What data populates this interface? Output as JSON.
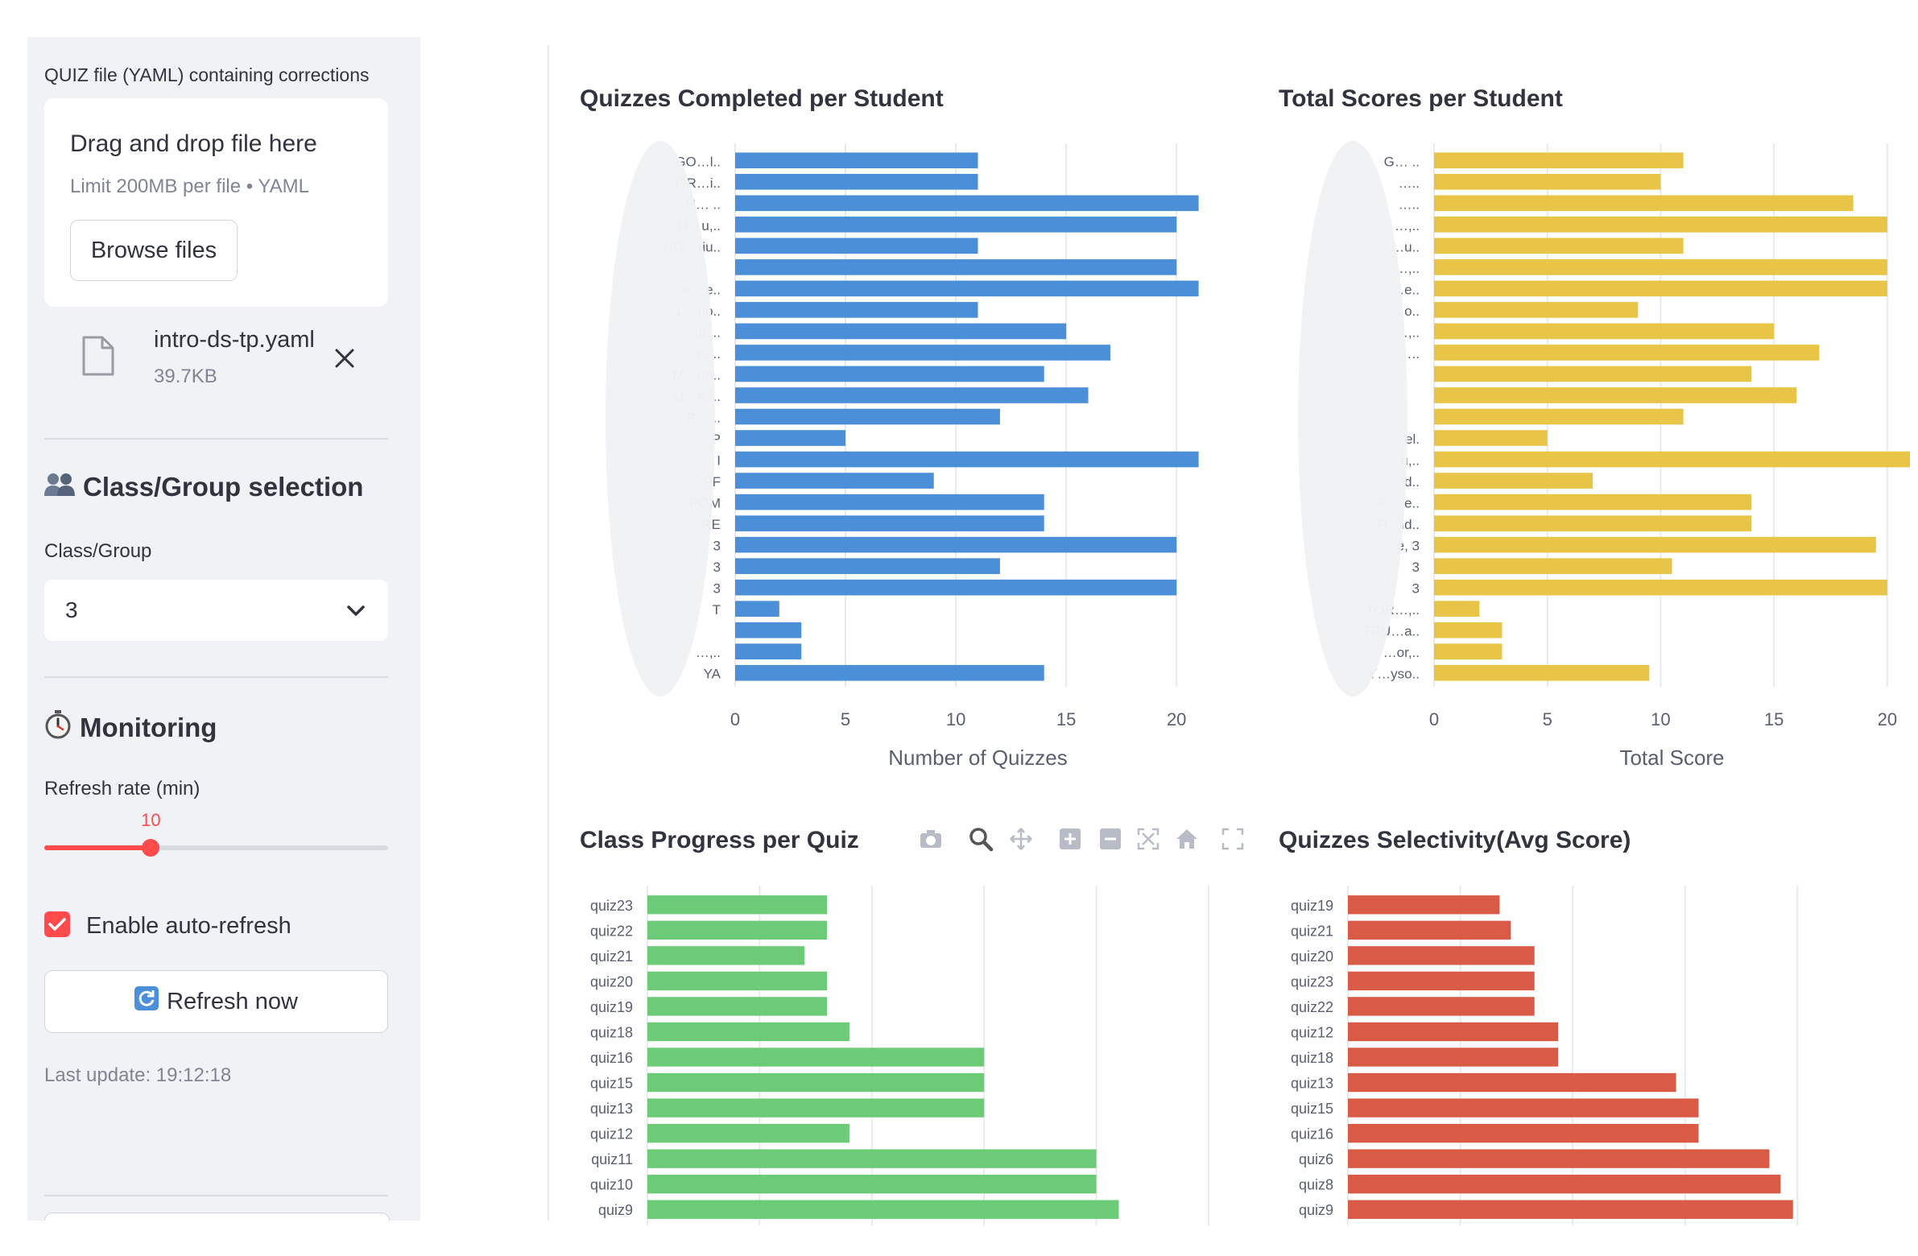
{
  "sidebar": {
    "uploader_label": "QUIZ file (YAML) containing corrections",
    "dropzone_title": "Drag and drop file here",
    "dropzone_hint": "Limit 200MB per file • YAML",
    "browse_label": "Browse files",
    "file_name": "intro-ds-tp.yaml",
    "file_size": "39.7KB",
    "class_heading": "Class/Group selection",
    "class_heading_icon": "people-icon",
    "class_label": "Class/Group",
    "class_value": "3",
    "monitor_heading": "Monitoring",
    "monitor_heading_icon": "stopwatch-icon",
    "refresh_label": "Refresh rate (min)",
    "refresh_value": "10",
    "refresh_fraction": 0.31,
    "autorefresh_label": "Enable auto-refresh",
    "autorefresh_checked": true,
    "refresh_now_label": "Refresh now",
    "refresh_now_icon": "refresh-icon",
    "last_update": "Last update: 19:12:18",
    "accent_color": "#ff4b4b"
  },
  "modebar_icons": [
    "camera-icon",
    "zoom-icon",
    "pan-icon",
    "zoom-in-icon",
    "zoom-out-icon",
    "autoscale-icon",
    "reset-axes-icon",
    "fullscreen-icon"
  ],
  "chart_data": [
    {
      "id": "quizzes",
      "type": "bar",
      "orientation": "horizontal",
      "title": "Quizzes Completed per Student",
      "xlabel": "Number of Quizzes",
      "color": "#4a8fd8",
      "xlim": [
        0,
        22
      ],
      "xticks": [
        0,
        5,
        10,
        15,
        20
      ],
      "categories": [
        "GO…l..",
        "GR…i..",
        "H… ..",
        "H…u,..",
        "HO…riu..",
        "",
        "K…e..",
        "L…no..",
        "…ul, ..",
        "…n, ..",
        "M…ori..",
        "M…n, ..",
        "P… ..",
        "P",
        "I",
        "PF",
        "POM",
        "RE",
        "3",
        "3",
        "3",
        "T",
        "",
        "…,..",
        "YA"
      ],
      "values": [
        11,
        11,
        21,
        20,
        11,
        20,
        21,
        11,
        15,
        17,
        14,
        16,
        12,
        5,
        21,
        9,
        14,
        14,
        20,
        12,
        20,
        2,
        3,
        3,
        14
      ]
    },
    {
      "id": "scores",
      "type": "bar",
      "orientation": "horizontal",
      "title": "Total Scores per Student",
      "xlabel": "Total Score",
      "color": "#e8c547",
      "xlim": [
        0,
        21
      ],
      "xticks": [
        0,
        5,
        10,
        15,
        20
      ],
      "categories": [
        "G… ..",
        "…..",
        "…..",
        "…,..",
        "…u..",
        "…,..",
        "…e..",
        "…o..",
        "…,..",
        "…..",
        "",
        "",
        "",
        "…el.",
        "…u,..",
        "…ld..",
        "P…le..",
        "R…id..",
        "…e, 3",
        "3",
        "3",
        "TOR…,..",
        "TRU…a..",
        "…or,..",
        "Y…yso.."
      ],
      "values": [
        11,
        10,
        18.5,
        20,
        11,
        20,
        20,
        9,
        15,
        17,
        14,
        16,
        11,
        5,
        21,
        7,
        14,
        14,
        19.5,
        10.5,
        20,
        2,
        3,
        3,
        9.5
      ]
    },
    {
      "id": "progress",
      "type": "bar",
      "orientation": "horizontal",
      "title": "Class Progress per Quiz",
      "color": "#6bcb77",
      "xlim": [
        0,
        25
      ],
      "categories": [
        "quiz23",
        "quiz22",
        "quiz21",
        "quiz20",
        "quiz19",
        "quiz18",
        "quiz16",
        "quiz15",
        "quiz13",
        "quiz12",
        "quiz11",
        "quiz10",
        "quiz9"
      ],
      "values": [
        8,
        8,
        7,
        8,
        8,
        9,
        15,
        15,
        15,
        9,
        20,
        20,
        21
      ]
    },
    {
      "id": "selectivity",
      "type": "bar",
      "orientation": "horizontal",
      "title": "Quizzes Selectivity(Avg Score)",
      "color": "#d95a45",
      "xlim": [
        0,
        4.7
      ],
      "categories": [
        "quiz19",
        "quiz21",
        "quiz20",
        "quiz23",
        "quiz22",
        "quiz12",
        "quiz18",
        "quiz13",
        "quiz15",
        "quiz16",
        "quiz6",
        "quiz8",
        "quiz9"
      ],
      "values": [
        1.35,
        1.45,
        1.66,
        1.66,
        1.66,
        1.87,
        1.87,
        2.92,
        3.12,
        3.12,
        3.75,
        3.85,
        3.96
      ]
    }
  ]
}
